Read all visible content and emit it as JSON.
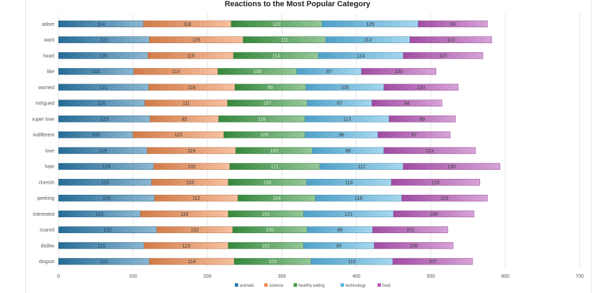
{
  "chart_data": {
    "type": "bar",
    "orientation": "horizontal",
    "stacked": true,
    "title": "Reactions to the Most Popular Category",
    "categories": [
      "adore",
      "want",
      "heart",
      "like",
      "worried",
      "intrigued",
      "super love",
      "indifferent",
      "love",
      "hate",
      "cherish",
      "peeking",
      "interested",
      "scared",
      "dislike",
      "disgust"
    ],
    "series": [
      {
        "name": "animals",
        "color": "#2c7bab",
        "values": [
          114,
          122,
          120,
          101,
          121,
          116,
          123,
          100,
          119,
          128,
          125,
          129,
          110,
          132,
          115,
          122
        ]
      },
      {
        "name": "science",
        "color": "#ee8c52",
        "values": [
          118,
          126,
          115,
          113,
          116,
          111,
          92,
          122,
          119,
          102,
          103,
          112,
          118,
          102,
          113,
          114
        ]
      },
      {
        "name": "healthy eating",
        "color": "#3f9a45",
        "values": [
          122,
          111,
          114,
          106,
          95,
          107,
          116,
          109,
          103,
          121,
          105,
          104,
          101,
          100,
          101,
          103
        ]
      },
      {
        "name": "technology",
        "color": "#5bb6e2",
        "values": [
          129,
          113,
          114,
          87,
          105,
          87,
          113,
          98,
          96,
          112,
          114,
          116,
          121,
          88,
          95,
          110
        ]
      },
      {
        "name": "food",
        "color": "#b657b8",
        "values": [
          93,
          110,
          107,
          100,
          100,
          94,
          89,
          97,
          123,
          130,
          119,
          115,
          108,
          101,
          106,
          107
        ]
      }
    ],
    "xlim": [
      0,
      700
    ],
    "xticks": [
      "0",
      "100",
      "200",
      "300",
      "400",
      "500",
      "600",
      "700"
    ],
    "grid": true,
    "legend_position": "bottom"
  }
}
